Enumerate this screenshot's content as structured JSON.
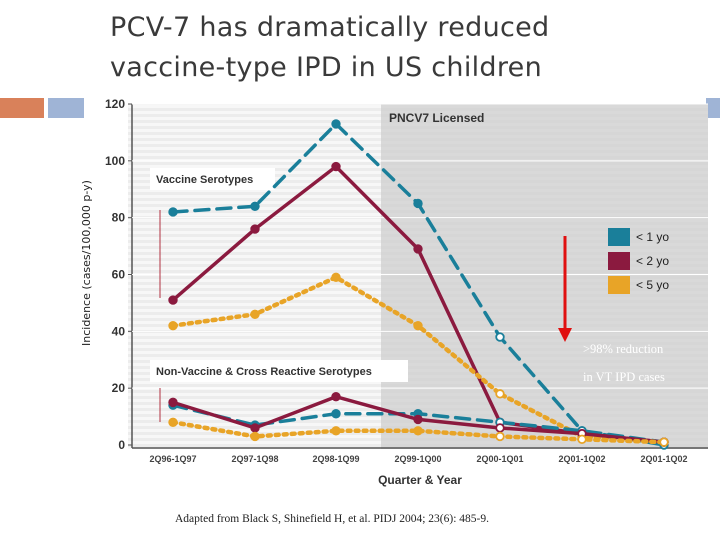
{
  "slide": {
    "title": "PCV-7 has dramatically reduced vaccine-type IPD in US children",
    "caption": "Adapted from Black S, Shinefield H, et al.  PIDJ 2004; 23(6): 485-9."
  },
  "chart_data": {
    "type": "line",
    "ylabel": "Incidence (cases/100,000 p-y)",
    "xlabel": "Quarter & Year",
    "ylim": [
      0,
      120
    ],
    "yticks": [
      0,
      20,
      40,
      60,
      80,
      100,
      120
    ],
    "categories": [
      "2Q96-1Q97",
      "2Q97-1Q98",
      "2Q98-1Q99",
      "2Q99-1Q00",
      "2Q00-1Q01",
      "2Q01-1Q02",
      "2Q01-1Q02"
    ],
    "shaded_region_label": "PNCV7 Licensed",
    "shaded_from_category": 3,
    "grid": true,
    "legend_position": "right",
    "sections": [
      {
        "label": "Vaccine Serotypes",
        "series": [
          {
            "name": "< 1 yo",
            "color": "#1a7f9a",
            "values": [
              82,
              84,
              113,
              85,
              38,
              5,
              0
            ]
          },
          {
            "name": "< 2 yo",
            "color": "#8b1a3f",
            "values": [
              51,
              76,
              98,
              69,
              8,
              4,
              1
            ]
          },
          {
            "name": "< 5 yo",
            "color": "#e8a427",
            "values": [
              42,
              46,
              59,
              42,
              18,
              3,
              1
            ]
          }
        ]
      },
      {
        "label": "Non-Vaccine & Cross Reactive Serotypes",
        "series": [
          {
            "name": "< 1 yo",
            "color": "#1a7f9a",
            "values": [
              14,
              7,
              11,
              11,
              8,
              5,
              1
            ]
          },
          {
            "name": "< 2 yo",
            "color": "#8b1a3f",
            "values": [
              15,
              6,
              17,
              9,
              6,
              4,
              1
            ]
          },
          {
            "name": "< 5 yo",
            "color": "#e8a427",
            "values": [
              8,
              3,
              5,
              5,
              3,
              2,
              1
            ]
          }
        ]
      }
    ],
    "annotations": [
      ">98% reduction",
      "in VT IPD cases"
    ]
  }
}
